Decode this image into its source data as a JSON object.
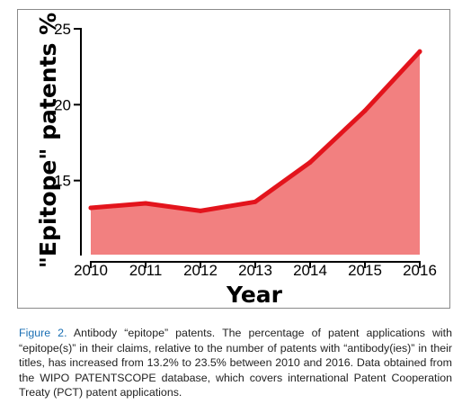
{
  "chart_data": {
    "type": "area",
    "title": "",
    "xlabel": "Year",
    "ylabel": "\"Epitope\" patents %",
    "x": [
      2010,
      2011,
      2012,
      2013,
      2014,
      2015,
      2016
    ],
    "series": [
      {
        "values": [
          13.2,
          13.5,
          13.0,
          13.6,
          16.2,
          19.6,
          23.5
        ]
      }
    ],
    "xlim": [
      2010,
      2016
    ],
    "ylim": [
      10,
      25
    ],
    "yticks": [
      15,
      20,
      25
    ],
    "grid": false,
    "colors": {
      "line": "#e3141c",
      "fill": "#f28080"
    }
  },
  "caption": {
    "label": "Figure 2.",
    "text": "Antibody “epitope” patents. The percentage of patent applications with “epitope(s)” in their claims, relative to the number of patents with “antibody(ies)” in their titles, has increased from 13.2% to 23.5% between 2010 and 2016. Data obtained from the WIPO PATENTSCOPE database, which covers international Patent Cooperation Treaty (PCT) patent applications."
  }
}
